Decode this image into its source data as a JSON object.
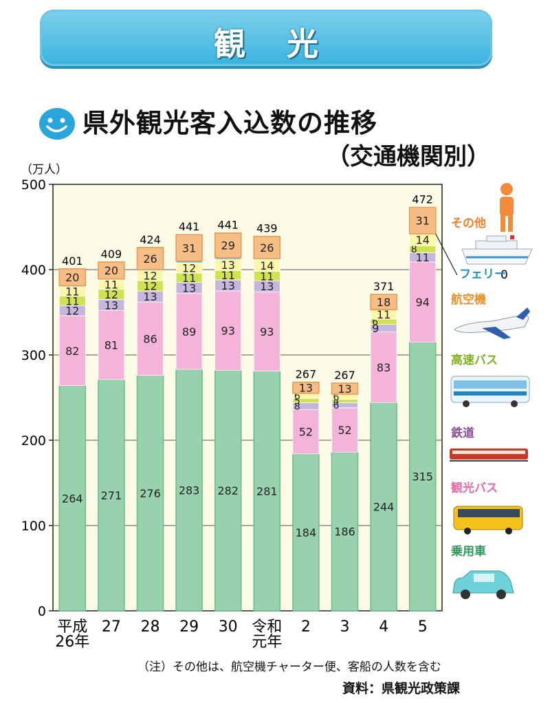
{
  "banner": {
    "title": "観光"
  },
  "header": {
    "title": "県外観光客入込数の推移",
    "subtitle": "（交通機関別）"
  },
  "unit_label": "（万人）",
  "note": "（注）その他は、航空機チャーター便、客船の人数を含む",
  "source": "資料：県観光政策課",
  "chart_data": {
    "type": "bar",
    "stacked": true,
    "title": "県外観光客入込数の推移",
    "ylabel": "（万人）",
    "ylim": [
      0,
      500
    ],
    "yticks": [
      0,
      100,
      200,
      300,
      400,
      500
    ],
    "grid": true,
    "legend_position": "right",
    "categories": [
      "平成\n26年",
      "27",
      "28",
      "29",
      "30",
      "令和\n元年",
      "2",
      "3",
      "4",
      "5"
    ],
    "totals": [
      401,
      409,
      424,
      441,
      441,
      439,
      267,
      267,
      371,
      472
    ],
    "series": [
      {
        "name": "乗用車",
        "color": "#97d1ae",
        "values": [
          264,
          271,
          276,
          283,
          282,
          281,
          184,
          186,
          244,
          315
        ]
      },
      {
        "name": "観光バス",
        "color": "#f4b3d8",
        "values": [
          82,
          81,
          86,
          89,
          93,
          93,
          52,
          52,
          83,
          94
        ]
      },
      {
        "name": "鉄道",
        "color": "#c6b6de",
        "values": [
          12,
          13,
          13,
          13,
          13,
          13,
          8,
          6,
          9,
          11
        ]
      },
      {
        "name": "高速バス",
        "color": "#cfe24f",
        "values": [
          11,
          12,
          12,
          11,
          11,
          11,
          5,
          4,
          6,
          8
        ]
      },
      {
        "name": "航空機",
        "color": "#fbf7a8",
        "values": [
          11,
          11,
          12,
          12,
          13,
          14,
          6,
          6,
          11,
          14
        ]
      },
      {
        "name": "フェリー",
        "color": "#5bc2dc",
        "values": [
          1,
          1,
          1,
          2,
          2,
          1,
          0,
          0,
          0,
          0
        ]
      },
      {
        "name": "その他",
        "color": "#f6bd85",
        "values": [
          20,
          20,
          26,
          31,
          29,
          26,
          13,
          13,
          18,
          31
        ]
      }
    ],
    "annotations": [
      {
        "text": "0",
        "series": "フェリー",
        "category": "5"
      }
    ]
  },
  "legend": {
    "items": [
      "その他",
      "フェリー",
      "航空機",
      "高速バス",
      "鉄道",
      "観光バス",
      "乗用車"
    ],
    "colors": [
      "#ef7f2c",
      "#1c8fc9",
      "#e8912a",
      "#7fb11e",
      "#8e4e9e",
      "#e66aa6",
      "#2c9a5a"
    ],
    "icons": [
      "person-icon",
      "ship-icon",
      "airplane-icon",
      "bus-icon",
      "train-icon",
      "bus-icon",
      "car-icon"
    ]
  },
  "accent": {
    "banner": "#39b3de",
    "plot_bg": "#fbfbe6",
    "grid": "#555555"
  }
}
